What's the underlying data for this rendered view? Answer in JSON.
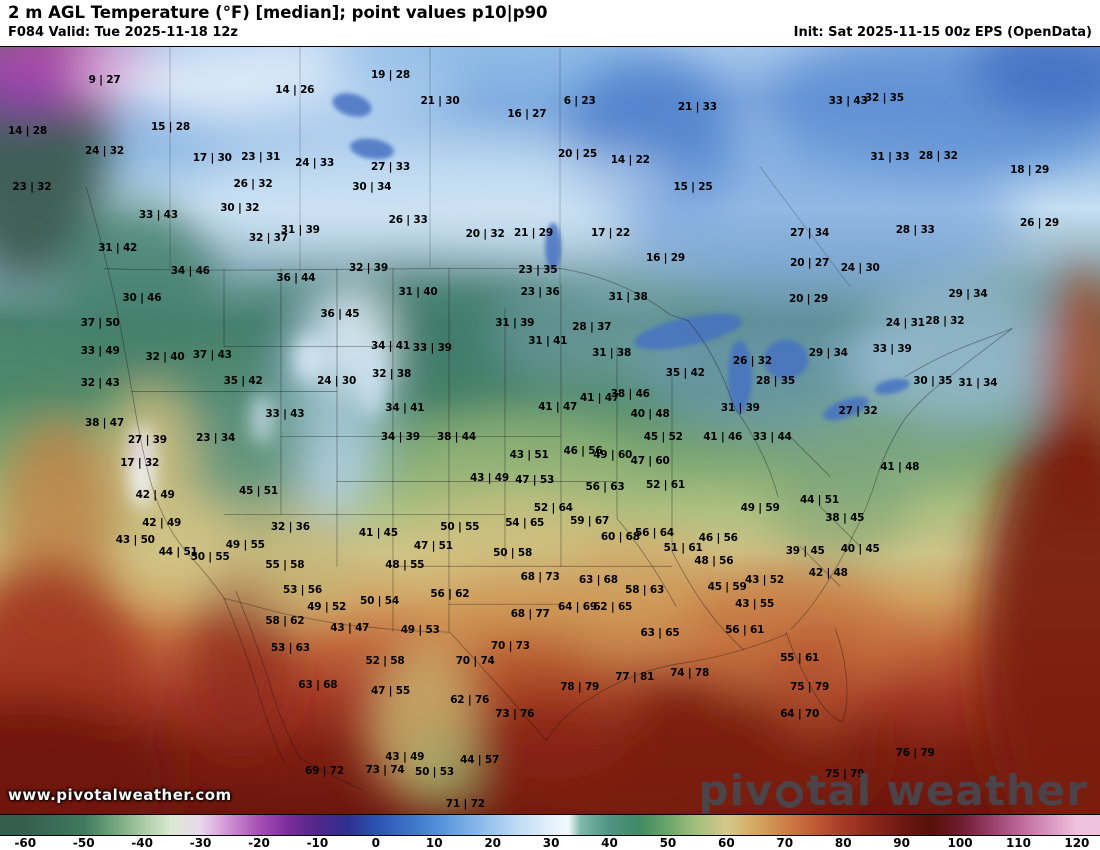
{
  "header": {
    "title": "2 m AGL Temperature (°F) [median]; point values p10|p90",
    "valid": "F084 Valid: Tue 2025-11-18 12z",
    "init": "Init: Sat 2025-11-15 00z EPS (OpenData)"
  },
  "watermark": {
    "url": "www.pivotalweather.com",
    "brand_p1": "piv",
    "brand_p2": "tal",
    "brand_p3": "weather"
  },
  "colorbar": {
    "min": -60,
    "max": 120,
    "ticks": [
      -60,
      -50,
      -40,
      -30,
      -20,
      -10,
      0,
      10,
      20,
      30,
      40,
      50,
      60,
      70,
      80,
      90,
      100,
      110,
      120
    ],
    "stops": [
      {
        "t": -60,
        "c": "#355e4e"
      },
      {
        "t": -50,
        "c": "#3f7a5e"
      },
      {
        "t": -45,
        "c": "#6fa37b"
      },
      {
        "t": -40,
        "c": "#a7c9a2"
      },
      {
        "t": -35,
        "c": "#dcead2"
      },
      {
        "t": -30,
        "c": "#e9d7ec"
      },
      {
        "t": -25,
        "c": "#cf8fd4"
      },
      {
        "t": -20,
        "c": "#a74fb5"
      },
      {
        "t": -15,
        "c": "#7a2d9e"
      },
      {
        "t": -10,
        "c": "#51268a"
      },
      {
        "t": -5,
        "c": "#2f2f8f"
      },
      {
        "t": 0,
        "c": "#2a52b0"
      },
      {
        "t": 5,
        "c": "#3a6fc4"
      },
      {
        "t": 10,
        "c": "#4f8cd8"
      },
      {
        "t": 15,
        "c": "#74aae4"
      },
      {
        "t": 20,
        "c": "#9cc6ee"
      },
      {
        "t": 25,
        "c": "#c4def6"
      },
      {
        "t": 30,
        "c": "#e4f0fa"
      },
      {
        "t": 33,
        "c": "#f2f8fc"
      },
      {
        "t": 35,
        "c": "#7fb8ae"
      },
      {
        "t": 40,
        "c": "#4e9383"
      },
      {
        "t": 45,
        "c": "#3f8a64"
      },
      {
        "t": 50,
        "c": "#6aa668"
      },
      {
        "t": 55,
        "c": "#a5bf7e"
      },
      {
        "t": 60,
        "c": "#d3c98a"
      },
      {
        "t": 65,
        "c": "#d4a861"
      },
      {
        "t": 70,
        "c": "#cd7f47"
      },
      {
        "t": 75,
        "c": "#c25a35"
      },
      {
        "t": 80,
        "c": "#a83a26"
      },
      {
        "t": 85,
        "c": "#8c271b"
      },
      {
        "t": 90,
        "c": "#6f1812"
      },
      {
        "t": 95,
        "c": "#571009"
      },
      {
        "t": 100,
        "c": "#6e1b2e"
      },
      {
        "t": 105,
        "c": "#943c63"
      },
      {
        "t": 110,
        "c": "#bb6597"
      },
      {
        "t": 115,
        "c": "#d992bd"
      },
      {
        "t": 120,
        "c": "#efc2dd"
      }
    ]
  },
  "map": {
    "points": [
      {
        "x": 9.5,
        "y": 4.3,
        "v": "9 | 27"
      },
      {
        "x": 26.8,
        "y": 5.6,
        "v": "14 | 26"
      },
      {
        "x": 35.5,
        "y": 3.6,
        "v": "19 | 28"
      },
      {
        "x": 40.0,
        "y": 7.1,
        "v": "21 | 30"
      },
      {
        "x": 47.9,
        "y": 8.7,
        "v": "16 | 27"
      },
      {
        "x": 52.7,
        "y": 7.1,
        "v": "6 | 23"
      },
      {
        "x": 63.4,
        "y": 7.8,
        "v": "21 | 33"
      },
      {
        "x": 80.4,
        "y": 6.6,
        "v": "32 | 35"
      },
      {
        "x": 77.1,
        "y": 7.1,
        "v": "33 | 43"
      },
      {
        "x": 2.5,
        "y": 11.0,
        "v": "14 | 28"
      },
      {
        "x": 15.5,
        "y": 10.4,
        "v": "15 | 28"
      },
      {
        "x": 9.5,
        "y": 13.6,
        "v": "24 | 32"
      },
      {
        "x": 19.3,
        "y": 14.5,
        "v": "17 | 30"
      },
      {
        "x": 23.7,
        "y": 14.4,
        "v": "23 | 31"
      },
      {
        "x": 28.6,
        "y": 15.1,
        "v": "24 | 33"
      },
      {
        "x": 35.5,
        "y": 15.6,
        "v": "27 | 33"
      },
      {
        "x": 52.5,
        "y": 13.9,
        "v": "20 | 25"
      },
      {
        "x": 57.3,
        "y": 14.7,
        "v": "14 | 22"
      },
      {
        "x": 80.9,
        "y": 14.4,
        "v": "31 | 33"
      },
      {
        "x": 85.3,
        "y": 14.2,
        "v": "28 | 32"
      },
      {
        "x": 93.6,
        "y": 16.0,
        "v": "18 | 29"
      },
      {
        "x": 2.9,
        "y": 18.3,
        "v": "23 | 32"
      },
      {
        "x": 23.0,
        "y": 17.9,
        "v": "26 | 32"
      },
      {
        "x": 33.8,
        "y": 18.2,
        "v": "30 | 34"
      },
      {
        "x": 63.0,
        "y": 18.2,
        "v": "15 | 25"
      },
      {
        "x": 94.5,
        "y": 23.0,
        "v": "26 | 29"
      },
      {
        "x": 14.4,
        "y": 21.9,
        "v": "33 | 43"
      },
      {
        "x": 21.8,
        "y": 21.0,
        "v": "30 | 32"
      },
      {
        "x": 37.1,
        "y": 22.5,
        "v": "26 | 33"
      },
      {
        "x": 24.4,
        "y": 24.9,
        "v": "32 | 37"
      },
      {
        "x": 27.3,
        "y": 23.9,
        "v": "31 | 39"
      },
      {
        "x": 44.1,
        "y": 24.4,
        "v": "20 | 32"
      },
      {
        "x": 48.5,
        "y": 24.2,
        "v": "21 | 29"
      },
      {
        "x": 55.5,
        "y": 24.3,
        "v": "17 | 22"
      },
      {
        "x": 60.5,
        "y": 27.5,
        "v": "16 | 29"
      },
      {
        "x": 73.6,
        "y": 24.3,
        "v": "27 | 34"
      },
      {
        "x": 83.2,
        "y": 23.8,
        "v": "28 | 33"
      },
      {
        "x": 10.7,
        "y": 26.2,
        "v": "31 | 42"
      },
      {
        "x": 17.3,
        "y": 29.2,
        "v": "34 | 46"
      },
      {
        "x": 26.9,
        "y": 30.1,
        "v": "36 | 44"
      },
      {
        "x": 33.5,
        "y": 28.8,
        "v": "32 | 39"
      },
      {
        "x": 48.9,
        "y": 29.1,
        "v": "23 | 35"
      },
      {
        "x": 49.1,
        "y": 31.9,
        "v": "23 | 36"
      },
      {
        "x": 73.6,
        "y": 28.2,
        "v": "20 | 27"
      },
      {
        "x": 78.2,
        "y": 28.8,
        "v": "24 | 30"
      },
      {
        "x": 12.9,
        "y": 32.7,
        "v": "30 | 46"
      },
      {
        "x": 38.0,
        "y": 31.9,
        "v": "31 | 40"
      },
      {
        "x": 57.1,
        "y": 32.6,
        "v": "31 | 38"
      },
      {
        "x": 73.5,
        "y": 32.9,
        "v": "20 | 29"
      },
      {
        "x": 88.0,
        "y": 32.2,
        "v": "29 | 34"
      },
      {
        "x": 9.1,
        "y": 36.0,
        "v": "37 | 50"
      },
      {
        "x": 30.9,
        "y": 34.8,
        "v": "36 | 45"
      },
      {
        "x": 46.8,
        "y": 36.0,
        "v": "31 | 39"
      },
      {
        "x": 53.8,
        "y": 36.5,
        "v": "28 | 37"
      },
      {
        "x": 82.3,
        "y": 36.0,
        "v": "24 | 31"
      },
      {
        "x": 85.9,
        "y": 35.7,
        "v": "28 | 32"
      },
      {
        "x": 9.1,
        "y": 39.6,
        "v": "33 | 49"
      },
      {
        "x": 15.0,
        "y": 40.4,
        "v": "32 | 40"
      },
      {
        "x": 19.3,
        "y": 40.1,
        "v": "37 | 43"
      },
      {
        "x": 35.5,
        "y": 39.0,
        "v": "34 | 41"
      },
      {
        "x": 39.3,
        "y": 39.2,
        "v": "33 | 39"
      },
      {
        "x": 49.8,
        "y": 38.3,
        "v": "31 | 41"
      },
      {
        "x": 55.6,
        "y": 39.9,
        "v": "31 | 38"
      },
      {
        "x": 62.3,
        "y": 42.5,
        "v": "35 | 42"
      },
      {
        "x": 68.4,
        "y": 40.9,
        "v": "26 | 32"
      },
      {
        "x": 75.3,
        "y": 39.9,
        "v": "29 | 34"
      },
      {
        "x": 81.1,
        "y": 39.4,
        "v": "33 | 39"
      },
      {
        "x": 9.1,
        "y": 43.8,
        "v": "32 | 43"
      },
      {
        "x": 22.1,
        "y": 43.6,
        "v": "35 | 42"
      },
      {
        "x": 30.6,
        "y": 43.5,
        "v": "24 | 30"
      },
      {
        "x": 35.6,
        "y": 42.6,
        "v": "32 | 38"
      },
      {
        "x": 57.3,
        "y": 45.2,
        "v": "38 | 46"
      },
      {
        "x": 70.5,
        "y": 43.5,
        "v": "28 | 35"
      },
      {
        "x": 84.8,
        "y": 43.5,
        "v": "30 | 35"
      },
      {
        "x": 88.9,
        "y": 43.8,
        "v": "31 | 34"
      },
      {
        "x": 9.5,
        "y": 49.0,
        "v": "38 | 47"
      },
      {
        "x": 25.9,
        "y": 47.8,
        "v": "33 | 43"
      },
      {
        "x": 36.8,
        "y": 47.1,
        "v": "34 | 41"
      },
      {
        "x": 50.7,
        "y": 46.9,
        "v": "41 | 47"
      },
      {
        "x": 54.5,
        "y": 45.8,
        "v": "41 | 47"
      },
      {
        "x": 59.1,
        "y": 47.8,
        "v": "40 | 48"
      },
      {
        "x": 67.3,
        "y": 47.1,
        "v": "31 | 39"
      },
      {
        "x": 78.0,
        "y": 47.4,
        "v": "27 | 32"
      },
      {
        "x": 13.4,
        "y": 51.3,
        "v": "27 | 39"
      },
      {
        "x": 19.6,
        "y": 51.0,
        "v": "23 | 34"
      },
      {
        "x": 36.4,
        "y": 50.9,
        "v": "34 | 39"
      },
      {
        "x": 41.5,
        "y": 50.8,
        "v": "38 | 44"
      },
      {
        "x": 48.1,
        "y": 53.2,
        "v": "43 | 51"
      },
      {
        "x": 60.3,
        "y": 50.9,
        "v": "45 | 52"
      },
      {
        "x": 65.7,
        "y": 50.8,
        "v": "41 | 46"
      },
      {
        "x": 70.2,
        "y": 50.8,
        "v": "33 | 44"
      },
      {
        "x": 53.0,
        "y": 52.7,
        "v": "46 | 56"
      },
      {
        "x": 55.7,
        "y": 53.2,
        "v": "49 | 60"
      },
      {
        "x": 59.1,
        "y": 54.0,
        "v": "47 | 60"
      },
      {
        "x": 81.8,
        "y": 54.8,
        "v": "41 | 48"
      },
      {
        "x": 12.7,
        "y": 54.3,
        "v": "17 | 32"
      },
      {
        "x": 44.5,
        "y": 56.2,
        "v": "43 | 49"
      },
      {
        "x": 48.6,
        "y": 56.4,
        "v": "47 | 53"
      },
      {
        "x": 55.0,
        "y": 57.4,
        "v": "56 | 63"
      },
      {
        "x": 60.5,
        "y": 57.1,
        "v": "52 | 61"
      },
      {
        "x": 23.5,
        "y": 57.9,
        "v": "45 | 51"
      },
      {
        "x": 14.1,
        "y": 58.4,
        "v": "42 | 49"
      },
      {
        "x": 69.1,
        "y": 60.1,
        "v": "49 | 59"
      },
      {
        "x": 50.3,
        "y": 60.1,
        "v": "52 | 64"
      },
      {
        "x": 74.5,
        "y": 59.1,
        "v": "44 | 51"
      },
      {
        "x": 14.7,
        "y": 62.1,
        "v": "42 | 49"
      },
      {
        "x": 12.3,
        "y": 64.3,
        "v": "43 | 50"
      },
      {
        "x": 26.4,
        "y": 62.6,
        "v": "32 | 36"
      },
      {
        "x": 34.4,
        "y": 63.4,
        "v": "41 | 45"
      },
      {
        "x": 41.8,
        "y": 62.6,
        "v": "50 | 55"
      },
      {
        "x": 47.7,
        "y": 62.1,
        "v": "54 | 65"
      },
      {
        "x": 53.6,
        "y": 61.8,
        "v": "59 | 67"
      },
      {
        "x": 56.4,
        "y": 63.9,
        "v": "60 | 68"
      },
      {
        "x": 59.5,
        "y": 63.4,
        "v": "56 | 64"
      },
      {
        "x": 62.1,
        "y": 65.3,
        "v": "51 | 61"
      },
      {
        "x": 65.3,
        "y": 64.0,
        "v": "46 | 56"
      },
      {
        "x": 22.3,
        "y": 64.9,
        "v": "49 | 55"
      },
      {
        "x": 19.1,
        "y": 66.5,
        "v": "50 | 55"
      },
      {
        "x": 16.2,
        "y": 65.8,
        "v": "44 | 51"
      },
      {
        "x": 39.4,
        "y": 65.1,
        "v": "47 | 51"
      },
      {
        "x": 46.6,
        "y": 66.0,
        "v": "50 | 58"
      },
      {
        "x": 64.9,
        "y": 67.0,
        "v": "48 | 56"
      },
      {
        "x": 66.1,
        "y": 70.4,
        "v": "45 | 59"
      },
      {
        "x": 73.2,
        "y": 65.7,
        "v": "39 | 45"
      },
      {
        "x": 78.2,
        "y": 65.5,
        "v": "40 | 45"
      },
      {
        "x": 76.8,
        "y": 61.4,
        "v": "38 | 45"
      },
      {
        "x": 25.9,
        "y": 67.5,
        "v": "55 | 58"
      },
      {
        "x": 36.8,
        "y": 67.5,
        "v": "48 | 55"
      },
      {
        "x": 49.1,
        "y": 69.1,
        "v": "68 | 73"
      },
      {
        "x": 54.4,
        "y": 69.5,
        "v": "63 | 68"
      },
      {
        "x": 69.5,
        "y": 69.5,
        "v": "43 | 52"
      },
      {
        "x": 75.3,
        "y": 68.6,
        "v": "42 | 48"
      },
      {
        "x": 27.5,
        "y": 70.8,
        "v": "53 | 56"
      },
      {
        "x": 40.9,
        "y": 71.3,
        "v": "56 | 62"
      },
      {
        "x": 58.6,
        "y": 70.8,
        "v": "58 | 63"
      },
      {
        "x": 68.6,
        "y": 72.6,
        "v": "43 | 55"
      },
      {
        "x": 29.7,
        "y": 73.0,
        "v": "49 | 52"
      },
      {
        "x": 34.5,
        "y": 72.2,
        "v": "50 | 54"
      },
      {
        "x": 25.9,
        "y": 74.8,
        "v": "58 | 62"
      },
      {
        "x": 48.2,
        "y": 73.9,
        "v": "68 | 77"
      },
      {
        "x": 52.5,
        "y": 73.0,
        "v": "64 | 69"
      },
      {
        "x": 55.7,
        "y": 73.0,
        "v": "62 | 65"
      },
      {
        "x": 60.0,
        "y": 76.4,
        "v": "63 | 65"
      },
      {
        "x": 31.8,
        "y": 75.7,
        "v": "43 | 47"
      },
      {
        "x": 38.2,
        "y": 76.0,
        "v": "49 | 53"
      },
      {
        "x": 67.7,
        "y": 76.0,
        "v": "56 | 61"
      },
      {
        "x": 26.4,
        "y": 78.4,
        "v": "53 | 63"
      },
      {
        "x": 35.0,
        "y": 80.1,
        "v": "52 | 58"
      },
      {
        "x": 43.2,
        "y": 80.0,
        "v": "70 | 74"
      },
      {
        "x": 46.4,
        "y": 78.1,
        "v": "70 | 73"
      },
      {
        "x": 72.7,
        "y": 79.7,
        "v": "55 | 61"
      },
      {
        "x": 28.9,
        "y": 83.2,
        "v": "63 | 68"
      },
      {
        "x": 57.7,
        "y": 82.1,
        "v": "77 | 81"
      },
      {
        "x": 62.7,
        "y": 81.6,
        "v": "74 | 78"
      },
      {
        "x": 52.7,
        "y": 83.5,
        "v": "78 | 79"
      },
      {
        "x": 35.5,
        "y": 84.0,
        "v": "47 | 55"
      },
      {
        "x": 42.7,
        "y": 85.1,
        "v": "62 | 76"
      },
      {
        "x": 73.6,
        "y": 83.4,
        "v": "75 | 79"
      },
      {
        "x": 46.8,
        "y": 87.0,
        "v": "73 | 76"
      },
      {
        "x": 72.7,
        "y": 87.0,
        "v": "64 | 70"
      },
      {
        "x": 36.8,
        "y": 92.6,
        "v": "43 | 49"
      },
      {
        "x": 43.6,
        "y": 92.9,
        "v": "44 | 57"
      },
      {
        "x": 39.5,
        "y": 94.5,
        "v": "50 | 53"
      },
      {
        "x": 35.0,
        "y": 94.3,
        "v": "73 | 74"
      },
      {
        "x": 29.5,
        "y": 94.4,
        "v": "69 | 72"
      },
      {
        "x": 42.3,
        "y": 98.7,
        "v": "71 | 72"
      },
      {
        "x": 83.2,
        "y": 92.0,
        "v": "76 | 79"
      },
      {
        "x": 76.8,
        "y": 94.8,
        "v": "75 | 79"
      }
    ]
  }
}
